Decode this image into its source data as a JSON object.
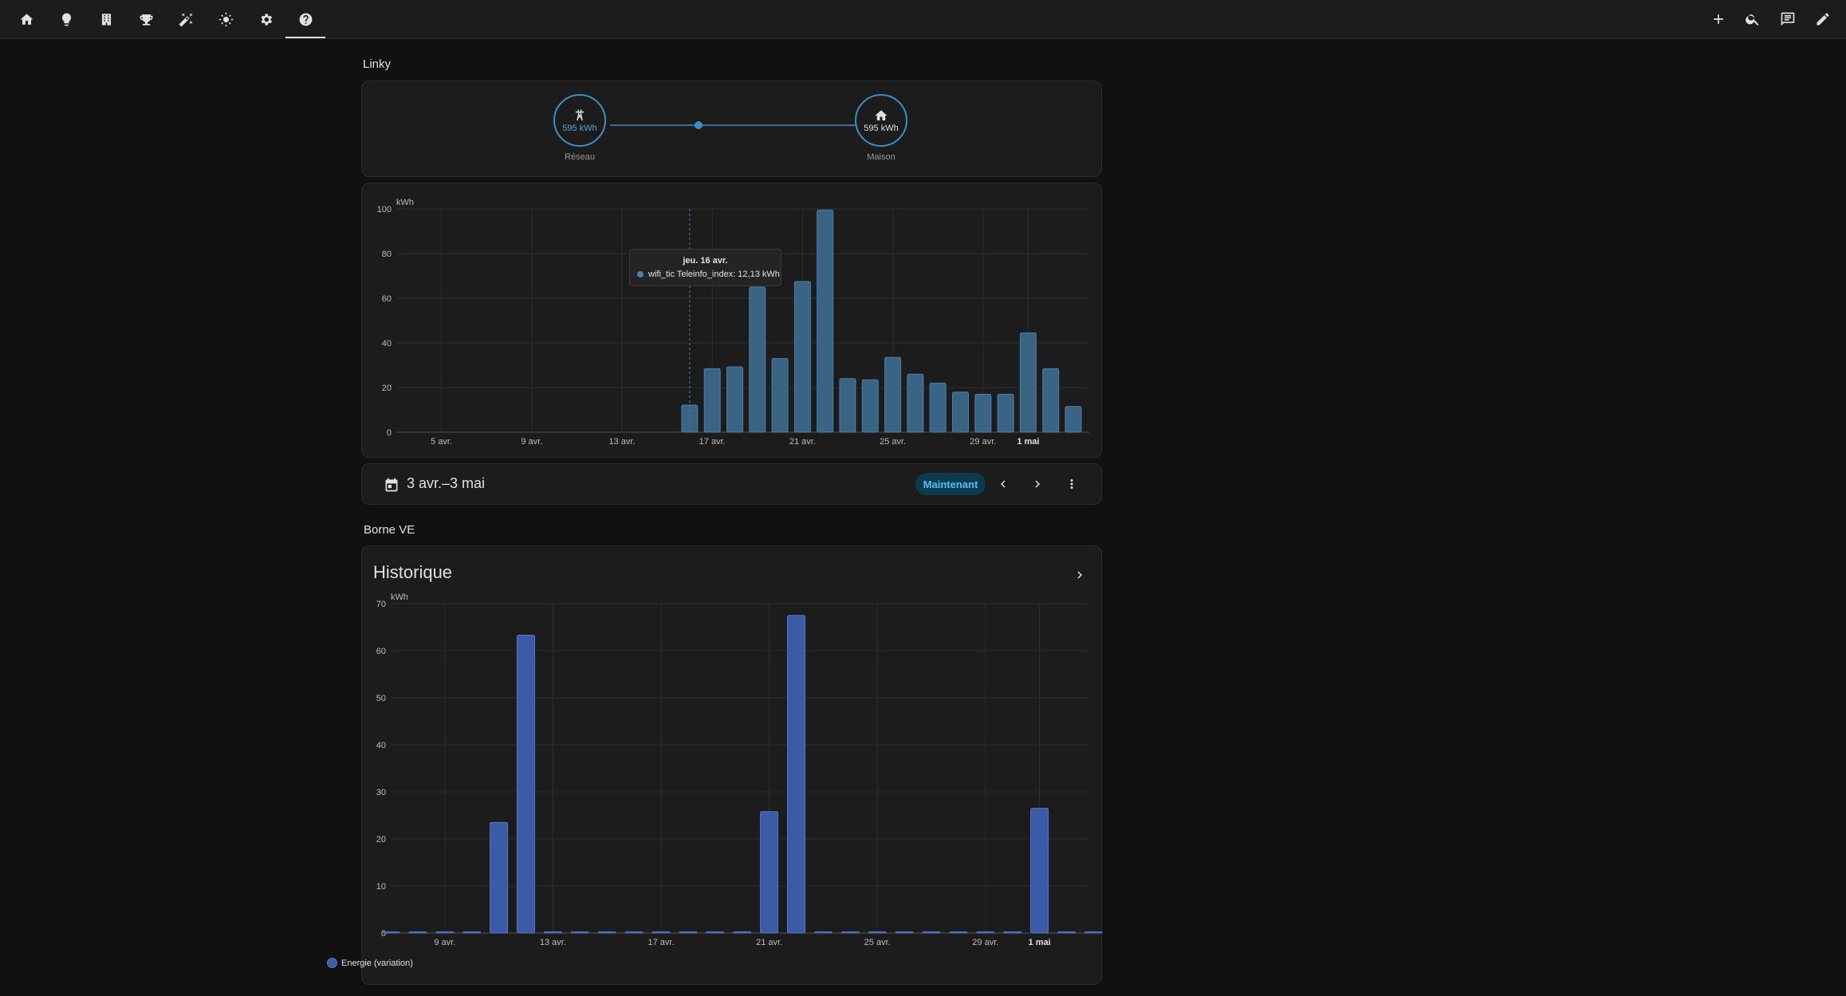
{
  "toolbar": {
    "tabs": [
      {
        "icon": "home-icon"
      },
      {
        "icon": "lightbulb-icon"
      },
      {
        "icon": "building-icon"
      },
      {
        "icon": "trophy-icon"
      },
      {
        "icon": "magic-wand-icon"
      },
      {
        "icon": "sun-icon"
      },
      {
        "icon": "gear-icon"
      },
      {
        "icon": "help-icon"
      }
    ],
    "actions": [
      {
        "icon": "plus-icon"
      },
      {
        "icon": "search-icon"
      },
      {
        "icon": "chat-icon"
      },
      {
        "icon": "pencil-icon"
      }
    ]
  },
  "linky": {
    "section_title": "Linky",
    "flow": {
      "grid": {
        "label": "Réseau",
        "value": "595 kWh",
        "icon": "transmission-tower-icon"
      },
      "home": {
        "label": "Maison",
        "value": "595 kWh",
        "icon": "home-icon"
      }
    },
    "chart": {
      "unit": "kWh",
      "tooltip": {
        "date": "jeu. 16 avr.",
        "text": "wifi_tic Teleinfo_index: 12,13 kWh"
      }
    },
    "date_bar": {
      "range": "3 avr.–3 mai",
      "now_label": "Maintenant"
    }
  },
  "borne": {
    "section_title": "Borne VE",
    "card_title": "Historique",
    "legend": "Energie (variation)"
  },
  "chart_data": [
    {
      "type": "bar",
      "unit": "kWh",
      "ylim": [
        0,
        100
      ],
      "yticks": [
        0,
        20,
        40,
        60,
        80,
        100
      ],
      "x_start_day": 3,
      "x_tick_labels": [
        {
          "day": 5,
          "label": "5 avr."
        },
        {
          "day": 9,
          "label": "9 avr."
        },
        {
          "day": 13,
          "label": "13 avr."
        },
        {
          "day": 17,
          "label": "17 avr."
        },
        {
          "day": 21,
          "label": "21 avr."
        },
        {
          "day": 25,
          "label": "25 avr."
        },
        {
          "day": 29,
          "label": "29 avr."
        },
        {
          "day": 31,
          "label": "1 mai",
          "bold": true
        }
      ],
      "days": [
        16,
        17,
        18,
        19,
        20,
        21,
        22,
        23,
        24,
        25,
        26,
        27,
        28,
        29,
        30,
        31,
        32,
        33
      ],
      "values": [
        12.13,
        28.5,
        29.3,
        65,
        33,
        67.5,
        99.5,
        24,
        23.5,
        33.5,
        26,
        22,
        18,
        17,
        17,
        44.5,
        28.5,
        11.5
      ],
      "color": "#3a6484"
    },
    {
      "type": "bar",
      "unit": "kWh",
      "ylim": [
        0,
        70
      ],
      "yticks": [
        0,
        10,
        20,
        30,
        40,
        50,
        60,
        70
      ],
      "x_start_day": 7,
      "x_tick_labels": [
        {
          "day": 9,
          "label": "9 avr."
        },
        {
          "day": 13,
          "label": "13 avr."
        },
        {
          "day": 17,
          "label": "17 avr."
        },
        {
          "day": 21,
          "label": "21 avr."
        },
        {
          "day": 25,
          "label": "25 avr."
        },
        {
          "day": 29,
          "label": "29 avr."
        },
        {
          "day": 31,
          "label": "1 mai",
          "bold": true
        }
      ],
      "days": [
        7,
        8,
        9,
        10,
        11,
        12,
        13,
        14,
        15,
        16,
        17,
        18,
        19,
        20,
        21,
        22,
        23,
        24,
        25,
        26,
        27,
        28,
        29,
        30,
        31,
        32,
        33
      ],
      "values": [
        0,
        0,
        0,
        0,
        23.5,
        63.3,
        0,
        0,
        0,
        0,
        0,
        0,
        0,
        0,
        25.8,
        67.5,
        0,
        0,
        0,
        0,
        0,
        0,
        0,
        0,
        26.5,
        0,
        0
      ],
      "series": [
        {
          "name": "Energie (variation)"
        }
      ],
      "color": "#3b5ba7"
    }
  ]
}
